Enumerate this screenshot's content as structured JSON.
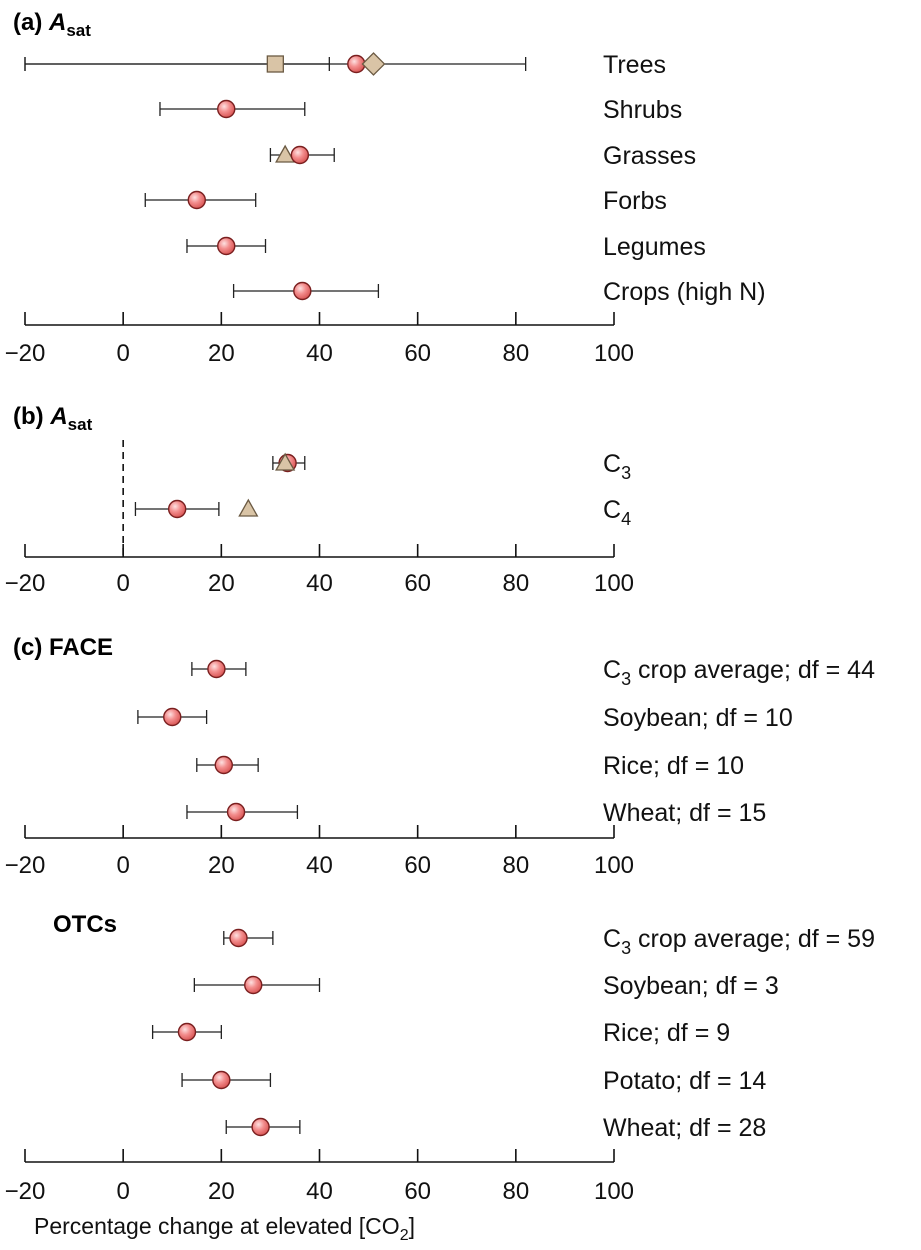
{
  "figure": {
    "xlabel_main": "Percentage change at elevated [CO",
    "xlabel_sub": "2",
    "xlabel_end": "]"
  },
  "chart_data": [
    {
      "type": "scatter",
      "panel": "(a)",
      "title_main": "A",
      "title_sub": "sat",
      "xlim": [
        -20,
        100
      ],
      "xticks": [
        "−20",
        "0",
        "20",
        "40",
        "60",
        "80",
        "100"
      ],
      "categories": [
        {
          "label": "Trees",
          "label_sub": "",
          "label_end": "",
          "circle": 47.5,
          "ci": [
            -20,
            82
          ],
          "square": 31,
          "square_ci": [
            -20,
            42
          ],
          "diamond": 51
        },
        {
          "label": "Shrubs",
          "label_sub": "",
          "label_end": "",
          "circle": 21,
          "ci": [
            7.5,
            37
          ]
        },
        {
          "label": "Grasses",
          "label_sub": "",
          "label_end": "",
          "circle": 36,
          "ci": [
            30,
            43
          ],
          "triangle": 33
        },
        {
          "label": "Forbs",
          "label_sub": "",
          "label_end": "",
          "circle": 15,
          "ci": [
            4.5,
            27
          ]
        },
        {
          "label": "Legumes",
          "label_sub": "",
          "label_end": "",
          "circle": 21,
          "ci": [
            13,
            29
          ]
        },
        {
          "label": "Crops (high N)",
          "label_sub": "",
          "label_end": "",
          "circle": 36.5,
          "ci": [
            22.5,
            52
          ]
        }
      ]
    },
    {
      "type": "scatter",
      "panel": "(b)",
      "title_main": "A",
      "title_sub": "sat",
      "xlim": [
        -20,
        100
      ],
      "reference_line": 0,
      "xticks": [
        "−20",
        "0",
        "20",
        "40",
        "60",
        "80",
        "100"
      ],
      "categories": [
        {
          "label": "C",
          "label_sub": "3",
          "label_end": "",
          "circle": 33.5,
          "ci": [
            30.5,
            37
          ],
          "triangle": 33
        },
        {
          "label": "C",
          "label_sub": "4",
          "label_end": "",
          "circle": 11,
          "ci": [
            2.5,
            19.5
          ],
          "triangle": 25.5
        }
      ]
    },
    {
      "type": "scatter",
      "panel": "(c)",
      "title_main": "FACE",
      "title_sub": "",
      "xlim": [
        -20,
        100
      ],
      "xticks": [
        "−20",
        "0",
        "20",
        "40",
        "60",
        "80",
        "100"
      ],
      "categories": [
        {
          "label": "C",
          "label_sub": "3",
          "label_end": " crop average; df = 44",
          "circle": 19,
          "ci": [
            14,
            25
          ]
        },
        {
          "label": "Soybean; df = 10",
          "label_sub": "",
          "label_end": "",
          "circle": 10,
          "ci": [
            3,
            17
          ]
        },
        {
          "label": "Rice; df = 10",
          "label_sub": "",
          "label_end": "",
          "circle": 20.5,
          "ci": [
            15,
            27.5
          ]
        },
        {
          "label": "Wheat; df = 15",
          "label_sub": "",
          "label_end": "",
          "circle": 23,
          "ci": [
            13,
            35.5
          ]
        }
      ]
    },
    {
      "type": "scatter",
      "panel": "",
      "title_main": "OTCs",
      "title_sub": "",
      "xlim": [
        -20,
        100
      ],
      "xticks": [
        "−20",
        "0",
        "20",
        "40",
        "60",
        "80",
        "100"
      ],
      "categories": [
        {
          "label": "C",
          "label_sub": "3",
          "label_end": " crop average; df = 59",
          "circle": 23.5,
          "ci": [
            20.5,
            30.5
          ]
        },
        {
          "label": "Soybean; df = 3",
          "label_sub": "",
          "label_end": "",
          "circle": 26.5,
          "ci": [
            14.5,
            40
          ]
        },
        {
          "label": "Rice; df = 9",
          "label_sub": "",
          "label_end": "",
          "circle": 13,
          "ci": [
            6,
            20
          ]
        },
        {
          "label": "Potato; df = 14",
          "label_sub": "",
          "label_end": "",
          "circle": 20,
          "ci": [
            12,
            30
          ]
        },
        {
          "label": "Wheat; df = 28",
          "label_sub": "",
          "label_end": "",
          "circle": 28,
          "ci": [
            21,
            36
          ]
        }
      ]
    }
  ]
}
